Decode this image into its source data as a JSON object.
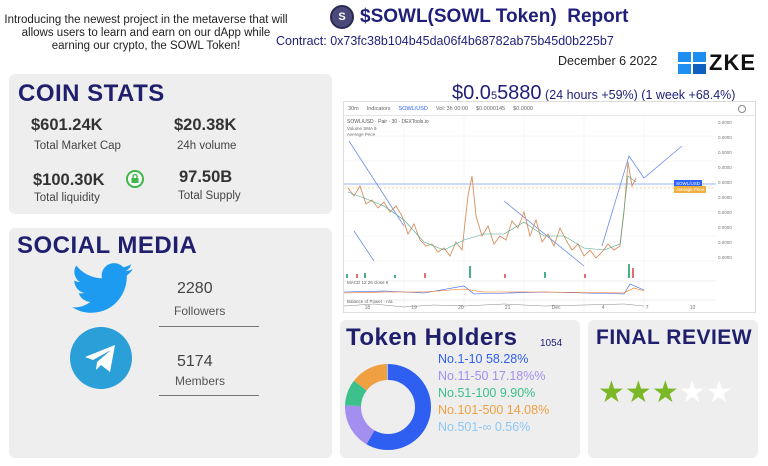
{
  "intro": "Introducing the newest project in the metaverse that will allows users to learn and earn on our dApp while earning our crypto, the SOWL Token!",
  "header": {
    "title": "$SOWL(SOWL Token)  Report",
    "contract_label": "Contract:",
    "contract_address": "0x73fc38b104b45da06f4b68782ab75b45d0b225b7",
    "date": "December 6 2022",
    "brand": "ZKE"
  },
  "coin_stats": {
    "title": "COIN STATS",
    "market_cap": {
      "value": "$601.24K",
      "label": "Total Market Cap"
    },
    "volume": {
      "value": "$20.38K",
      "label": "24h volume"
    },
    "liquidity": {
      "value": "$100.30K",
      "label": "Total liquidity"
    },
    "supply": {
      "value": "97.50B",
      "label": "Total Supply"
    }
  },
  "price": {
    "main": "$0.0",
    "sub": "5",
    "rest": "5880",
    "change": "(24 hours +59%) (1 week +68.4%)"
  },
  "social": {
    "title": "SOCIAL MEDIA",
    "twitter": {
      "count": "2280",
      "label": "Followers"
    },
    "telegram": {
      "count": "5174",
      "label": "Members"
    }
  },
  "holders": {
    "title": "Token Holders",
    "count": "1054",
    "segments": [
      {
        "label": "No.1-10  58.28%",
        "value": 58.28,
        "color": "#2f5ff0"
      },
      {
        "label": "No.11-50 17.18%%",
        "value": 17.18,
        "color": "#a48ef0"
      },
      {
        "label": "No.51-100 9.90%",
        "value": 9.9,
        "color": "#3cc08c"
      },
      {
        "label": "No.101-500 14.08%",
        "value": 14.08,
        "color": "#f0a040"
      },
      {
        "label": "No.501-∞ 0.56%",
        "value": 0.56,
        "color": "#8ec8f5"
      }
    ]
  },
  "review": {
    "title": "FINAL REVIEW",
    "rating": 3,
    "max": 5,
    "star_color": "#7ab828"
  },
  "chart_widget": {
    "toolbar": [
      "30m",
      "Indicators",
      "SOWL/USD",
      "Vol: 3h 00:00",
      "$0.0000145",
      "$0.0000"
    ],
    "pair": "SOWL/USD · Pair · 30 · DEXTools.io",
    "volume_label": "Volume SMA 9",
    "avg_label": "Average Price",
    "macd_label": "MACD 12 26 close 9",
    "balance_label": "Balance of Power · n/a",
    "price_tag_1": "SOWL/USD",
    "price_tag_2": "Average Price",
    "x_ticks": [
      "18",
      "19",
      "20",
      "21",
      "Dec",
      "4",
      "7",
      "10"
    ],
    "y_ticks": [
      "0.0000",
      "0.0000",
      "0.0000",
      "0.0000",
      "0.0000",
      "0.0000",
      "0.0000",
      "0.0000",
      "0.0000",
      "0.0000"
    ]
  }
}
